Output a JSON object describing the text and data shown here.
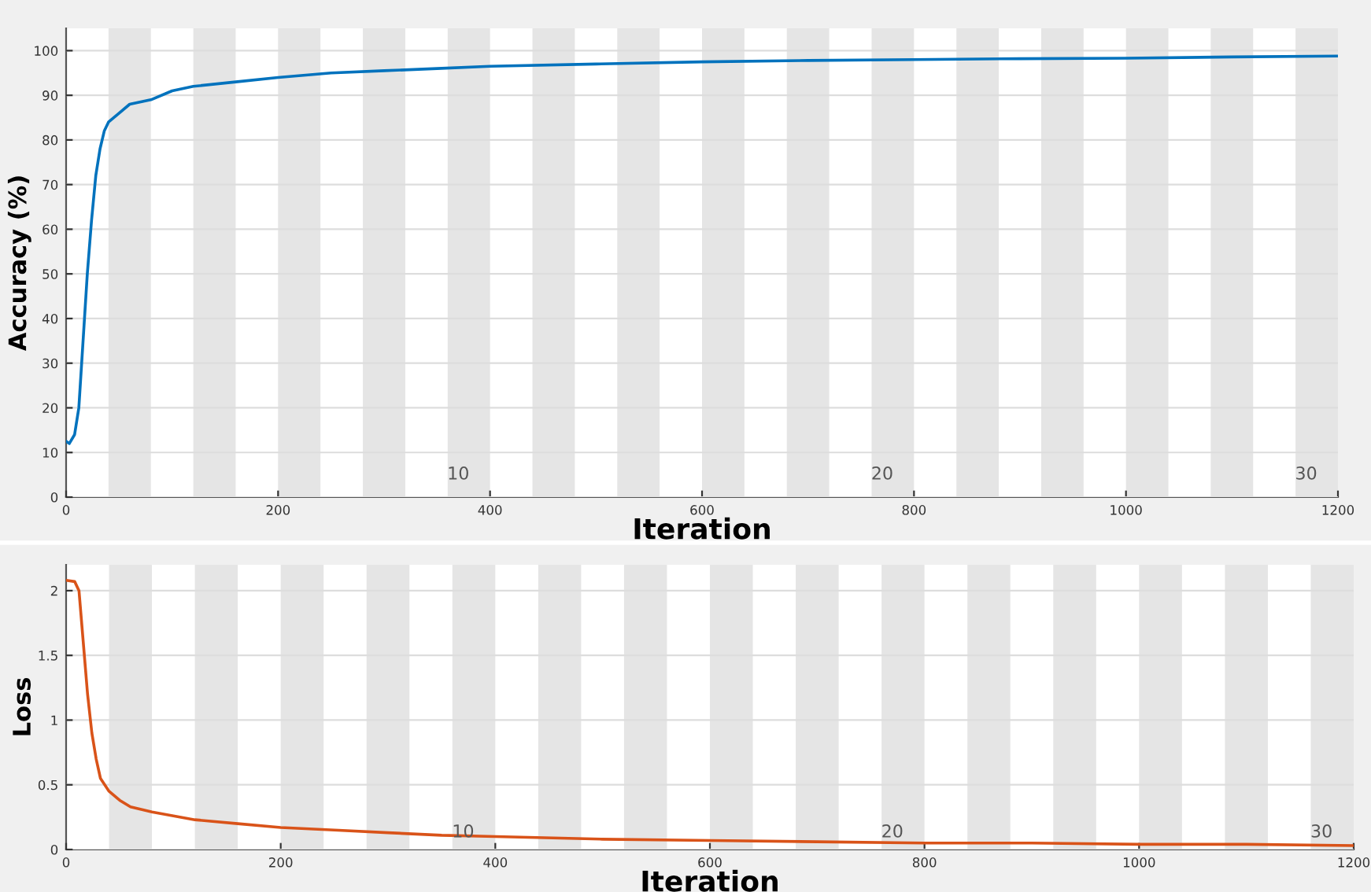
{
  "chart_data": [
    {
      "type": "line",
      "xlabel": "Iteration",
      "ylabel": "Accuracy (%)",
      "xlim": [
        0,
        1200
      ],
      "xticks": [
        0,
        200,
        400,
        600,
        800,
        1000,
        1200
      ],
      "ylim": [
        0,
        105
      ],
      "yticks": [
        0,
        10,
        20,
        30,
        40,
        50,
        60,
        70,
        80,
        90,
        100
      ],
      "grid": "y",
      "x": [
        0,
        3,
        8,
        12,
        16,
        20,
        24,
        28,
        32,
        36,
        40,
        50,
        60,
        80,
        100,
        120,
        160,
        200,
        250,
        300,
        350,
        400,
        500,
        600,
        700,
        800,
        900,
        1000,
        1100,
        1200
      ],
      "series": [
        {
          "color": "#0072bd",
          "values": [
            12.5,
            12,
            14,
            20,
            35,
            50,
            62,
            72,
            78,
            82,
            84,
            86,
            88,
            89,
            91,
            92,
            93,
            94,
            95,
            95.5,
            96,
            96.5,
            97,
            97.5,
            97.8,
            98,
            98.2,
            98.3,
            98.6,
            98.8
          ]
        }
      ],
      "bands": [
        {
          "axis": "x",
          "from": 40,
          "to": 80,
          "color": "#e5e5e5"
        },
        {
          "axis": "x",
          "from": 120,
          "to": 160,
          "color": "#e5e5e5"
        },
        {
          "axis": "x",
          "from": 200,
          "to": 240,
          "color": "#e5e5e5"
        },
        {
          "axis": "x",
          "from": 280,
          "to": 320,
          "color": "#e5e5e5"
        },
        {
          "axis": "x",
          "from": 360,
          "to": 400,
          "color": "#e5e5e5"
        },
        {
          "axis": "x",
          "from": 440,
          "to": 480,
          "color": "#e5e5e5"
        },
        {
          "axis": "x",
          "from": 520,
          "to": 560,
          "color": "#e5e5e5"
        },
        {
          "axis": "x",
          "from": 600,
          "to": 640,
          "color": "#e5e5e5"
        },
        {
          "axis": "x",
          "from": 680,
          "to": 720,
          "color": "#e5e5e5"
        },
        {
          "axis": "x",
          "from": 760,
          "to": 800,
          "color": "#e5e5e5"
        },
        {
          "axis": "x",
          "from": 840,
          "to": 880,
          "color": "#e5e5e5"
        },
        {
          "axis": "x",
          "from": 920,
          "to": 960,
          "color": "#e5e5e5"
        },
        {
          "axis": "x",
          "from": 1000,
          "to": 1040,
          "color": "#e5e5e5"
        },
        {
          "axis": "x",
          "from": 1080,
          "to": 1120,
          "color": "#e5e5e5"
        },
        {
          "axis": "x",
          "from": 1160,
          "to": 1200,
          "color": "#e5e5e5"
        }
      ],
      "annotations": [
        "10",
        "20",
        "30"
      ]
    },
    {
      "type": "line",
      "xlabel": "Iteration",
      "ylabel": "Loss",
      "xlim": [
        0,
        1200
      ],
      "xticks": [
        0,
        200,
        400,
        600,
        800,
        1000,
        1200
      ],
      "ylim": [
        0,
        2.2
      ],
      "yticks": [
        0,
        0.5,
        1,
        1.5,
        2
      ],
      "grid": "y",
      "x": [
        0,
        8,
        12,
        16,
        20,
        24,
        28,
        32,
        40,
        50,
        60,
        80,
        100,
        120,
        160,
        200,
        250,
        300,
        350,
        400,
        500,
        600,
        700,
        800,
        900,
        1000,
        1100,
        1200
      ],
      "series": [
        {
          "color": "#d95319",
          "values": [
            2.08,
            2.07,
            2.0,
            1.6,
            1.2,
            0.9,
            0.7,
            0.55,
            0.45,
            0.38,
            0.33,
            0.29,
            0.26,
            0.23,
            0.2,
            0.17,
            0.15,
            0.13,
            0.11,
            0.1,
            0.08,
            0.07,
            0.06,
            0.05,
            0.05,
            0.04,
            0.04,
            0.03
          ]
        }
      ],
      "bands": [
        {
          "axis": "x",
          "from": 40,
          "to": 80,
          "color": "#e5e5e5"
        },
        {
          "axis": "x",
          "from": 120,
          "to": 160,
          "color": "#e5e5e5"
        },
        {
          "axis": "x",
          "from": 200,
          "to": 240,
          "color": "#e5e5e5"
        },
        {
          "axis": "x",
          "from": 280,
          "to": 320,
          "color": "#e5e5e5"
        },
        {
          "axis": "x",
          "from": 360,
          "to": 400,
          "color": "#e5e5e5"
        },
        {
          "axis": "x",
          "from": 440,
          "to": 480,
          "color": "#e5e5e5"
        },
        {
          "axis": "x",
          "from": 520,
          "to": 560,
          "color": "#e5e5e5"
        },
        {
          "axis": "x",
          "from": 600,
          "to": 640,
          "color": "#e5e5e5"
        },
        {
          "axis": "x",
          "from": 680,
          "to": 720,
          "color": "#e5e5e5"
        },
        {
          "axis": "x",
          "from": 760,
          "to": 800,
          "color": "#e5e5e5"
        },
        {
          "axis": "x",
          "from": 840,
          "to": 880,
          "color": "#e5e5e5"
        },
        {
          "axis": "x",
          "from": 920,
          "to": 960,
          "color": "#e5e5e5"
        },
        {
          "axis": "x",
          "from": 1000,
          "to": 1040,
          "color": "#e5e5e5"
        },
        {
          "axis": "x",
          "from": 1080,
          "to": 1120,
          "color": "#e5e5e5"
        },
        {
          "axis": "x",
          "from": 1160,
          "to": 1200,
          "color": "#e5e5e5"
        }
      ],
      "annotations": [
        "10",
        "20",
        "30"
      ]
    }
  ]
}
